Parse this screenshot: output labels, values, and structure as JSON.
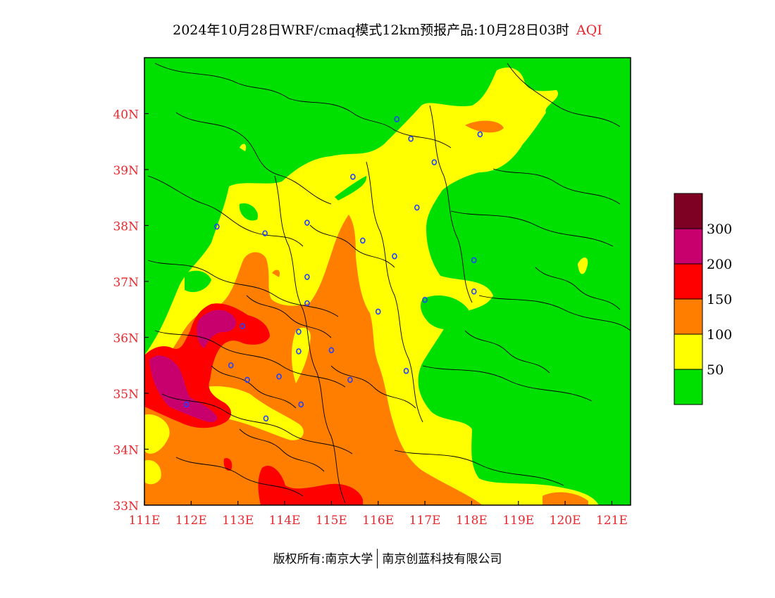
{
  "title": {
    "main": "2024年10月28日WRF/cmaq模式12km预报产品:10月28日03时",
    "variable": "AQI"
  },
  "map": {
    "lon_range": [
      111,
      121.4
    ],
    "lat_range": [
      33,
      41
    ],
    "lon_ticks": [
      "111E",
      "112E",
      "113E",
      "114E",
      "115E",
      "116E",
      "117E",
      "118E",
      "119E",
      "120E",
      "121E"
    ],
    "lat_ticks": [
      "33N",
      "34N",
      "35N",
      "36N",
      "37N",
      "38N",
      "39N",
      "40N"
    ]
  },
  "legend": {
    "levels": [
      {
        "label": "50",
        "color": "#00e000"
      },
      {
        "label": "100",
        "color": "#ffff00"
      },
      {
        "label": "150",
        "color": "#ff7e00"
      },
      {
        "label": "200",
        "color": "#ff0000"
      },
      {
        "label": "300",
        "color": "#c8006e"
      },
      {
        "label": "",
        "color": "#7e0023"
      }
    ]
  },
  "colors": {
    "good": "#00e000",
    "moderate": "#ffff00",
    "usg": "#ff7e00",
    "unhealthy": "#ff0000",
    "very_unhealthy": "#c8006e",
    "hazardous": "#7e0023",
    "tick": "#e8282e",
    "city_marker": "#2040ff"
  },
  "cities": [
    {
      "lon": 116.4,
      "lat": 39.9
    },
    {
      "lon": 116.7,
      "lat": 39.55
    },
    {
      "lon": 117.2,
      "lat": 39.13
    },
    {
      "lon": 118.18,
      "lat": 39.63
    },
    {
      "lon": 115.46,
      "lat": 38.87
    },
    {
      "lon": 116.83,
      "lat": 38.32
    },
    {
      "lon": 114.48,
      "lat": 38.05
    },
    {
      "lon": 113.58,
      "lat": 37.86
    },
    {
      "lon": 112.55,
      "lat": 37.98
    },
    {
      "lon": 115.67,
      "lat": 37.73
    },
    {
      "lon": 116.35,
      "lat": 37.45
    },
    {
      "lon": 118.05,
      "lat": 37.38
    },
    {
      "lon": 118.05,
      "lat": 36.82
    },
    {
      "lon": 117.0,
      "lat": 36.67
    },
    {
      "lon": 114.48,
      "lat": 37.08
    },
    {
      "lon": 114.48,
      "lat": 36.61
    },
    {
      "lon": 116.0,
      "lat": 36.46
    },
    {
      "lon": 114.3,
      "lat": 36.1
    },
    {
      "lon": 113.1,
      "lat": 36.2
    },
    {
      "lon": 114.3,
      "lat": 35.75
    },
    {
      "lon": 115.0,
      "lat": 35.77
    },
    {
      "lon": 112.85,
      "lat": 35.5
    },
    {
      "lon": 113.88,
      "lat": 35.3
    },
    {
      "lon": 113.2,
      "lat": 35.24
    },
    {
      "lon": 115.4,
      "lat": 35.24
    },
    {
      "lon": 116.6,
      "lat": 35.4
    },
    {
      "lon": 114.35,
      "lat": 34.8
    },
    {
      "lon": 113.6,
      "lat": 34.55
    },
    {
      "lon": 111.9,
      "lat": 34.8
    }
  ],
  "footer": {
    "left": "版权所有:南京大学",
    "right": "南京创蓝科技有限公司"
  }
}
